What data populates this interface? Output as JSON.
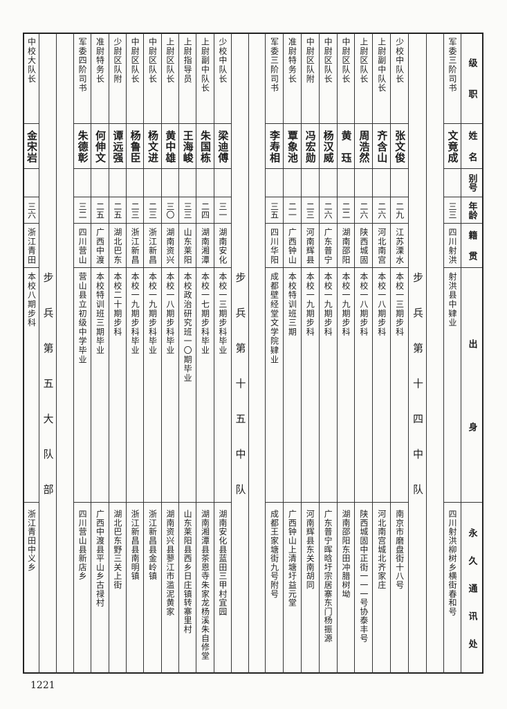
{
  "header": {
    "rank": "级职",
    "name": "姓名",
    "alias": "别号",
    "age": "年龄",
    "native": "籍贯",
    "education": "出身",
    "address": "永久通讯处"
  },
  "lead_entry": {
    "rank": "军委三阶司书",
    "name": "文竟成",
    "alias": "",
    "age": "三三",
    "native": "四川射洪",
    "education": "射洪县中肄业",
    "address": "四川射洪柳树乡横街春和号"
  },
  "sections": [
    {
      "title": "步兵第十四中队",
      "members": [
        {
          "rank": "少校中队长",
          "name": "张文俊",
          "alias": "",
          "age": "二九",
          "native": "江苏溧水",
          "education": "本校一三期步科",
          "address": "南京市磨盘街十八号"
        },
        {
          "rank": "上尉副中队长",
          "name": "齐含山",
          "alias": "",
          "age": "二六",
          "native": "河北南宫",
          "education": "本校一八期步科",
          "address": "河北南宫城北齐家庄"
        },
        {
          "rank": "上尉区队长",
          "name": "周浩然",
          "alias": "",
          "age": "二六",
          "native": "陕西城固",
          "education": "本校一八期步科",
          "address": "陕西城固中正街一一一号协泰丰号"
        },
        {
          "rank": "中尉区队长",
          "name": "黄　珏",
          "alias": "",
          "age": "二二",
          "native": "湖南邵阳",
          "education": "本校一九期步科",
          "address": "湖南邵阳东田冲腊树坳"
        },
        {
          "rank": "中尉区队长",
          "name": "杨汉威",
          "alias": "",
          "age": "二六",
          "native": "广东普宁",
          "education": "本校一九期步科",
          "address": "广东普宁晖晗圩宗居寨东门杨振源"
        },
        {
          "rank": "中尉区队附",
          "name": "冯宏勋",
          "alias": "",
          "age": "二三",
          "native": "河南辉县",
          "education": "本校一九期步科",
          "address": "河南辉县东关南胡同"
        },
        {
          "rank": "准尉特务长",
          "name": "覃象池",
          "alias": "",
          "age": "二一",
          "native": "广西钟山",
          "education": "本校特训班三期",
          "address": "广西钟山上清塘圩益元堂"
        },
        {
          "rank": "军委三阶司书",
          "name": "李寿相",
          "alias": "",
          "age": "三五",
          "native": "四川华阳",
          "education": "成都壁经堂文学院肄业",
          "address": "成都王家塘街九号附号"
        }
      ]
    },
    {
      "title": "步兵第十五中队",
      "members": [
        {
          "rank": "少校中队长",
          "name": "梁迪傅",
          "alias": "",
          "age": "三一",
          "native": "湖南安化",
          "education": "本校一三期步科毕业",
          "address": "湖南安化县蓝田三甲村宜园"
        },
        {
          "rank": "上尉副中队长",
          "name": "朱国栋",
          "alias": "",
          "age": "二四",
          "native": "湖南湘潭",
          "education": "本校一七期步科毕业",
          "address": "湖南湘潭县茶恩寺朱家龙杨溪朱自修堂"
        },
        {
          "rank": "上尉指导员",
          "name": "王海峻",
          "alias": "",
          "age": "三三",
          "native": "山东莱阳",
          "education": "本校政治研究班一〇期毕业",
          "address": "山东莱阳县西乡日庄镇转寨里村"
        },
        {
          "rank": "上尉区队长",
          "name": "黄中雄",
          "alias": "",
          "age": "三〇",
          "native": "湖南资兴",
          "education": "本校一八期步科毕业",
          "address": "湖南资兴县蓼江市滥泥黄家"
        },
        {
          "rank": "中尉区队长",
          "name": "杨文进",
          "alias": "",
          "age": "二三",
          "native": "浙江新昌",
          "education": "本校一九期步科毕业",
          "address": "浙江新昌县金岭镇"
        },
        {
          "rank": "中尉区队长",
          "name": "杨鲁臣",
          "alias": "",
          "age": "二三",
          "native": "浙江新昌",
          "education": "本校一九期步科毕业",
          "address": "浙江新昌县南明镇"
        },
        {
          "rank": "少尉区队附",
          "name": "谭远强",
          "alias": "",
          "age": "二五",
          "native": "湖北巴东",
          "education": "本校二十期步科",
          "address": "湖北巴东野三关上街"
        },
        {
          "rank": "准尉特务长",
          "name": "何伸文",
          "alias": "",
          "age": "二五",
          "native": "广西中渡",
          "education": "本校特训班三期毕业",
          "address": "广西中渡县平山乡古禄村"
        },
        {
          "rank": "军委四阶司书",
          "name": "朱德彰",
          "alias": "",
          "age": "三二",
          "native": "四川营山",
          "education": "营山县立初级中学毕业",
          "address": "四川营山县新店乡"
        }
      ]
    },
    {
      "title": "步兵第五大队部",
      "members": [
        {
          "rank": "中校大队长",
          "name": "金宋岩",
          "alias": "",
          "age": "三六",
          "native": "浙江青田",
          "education": "本校八期步科",
          "address": "浙江青田中义乡"
        }
      ]
    }
  ],
  "page_number": "1221"
}
